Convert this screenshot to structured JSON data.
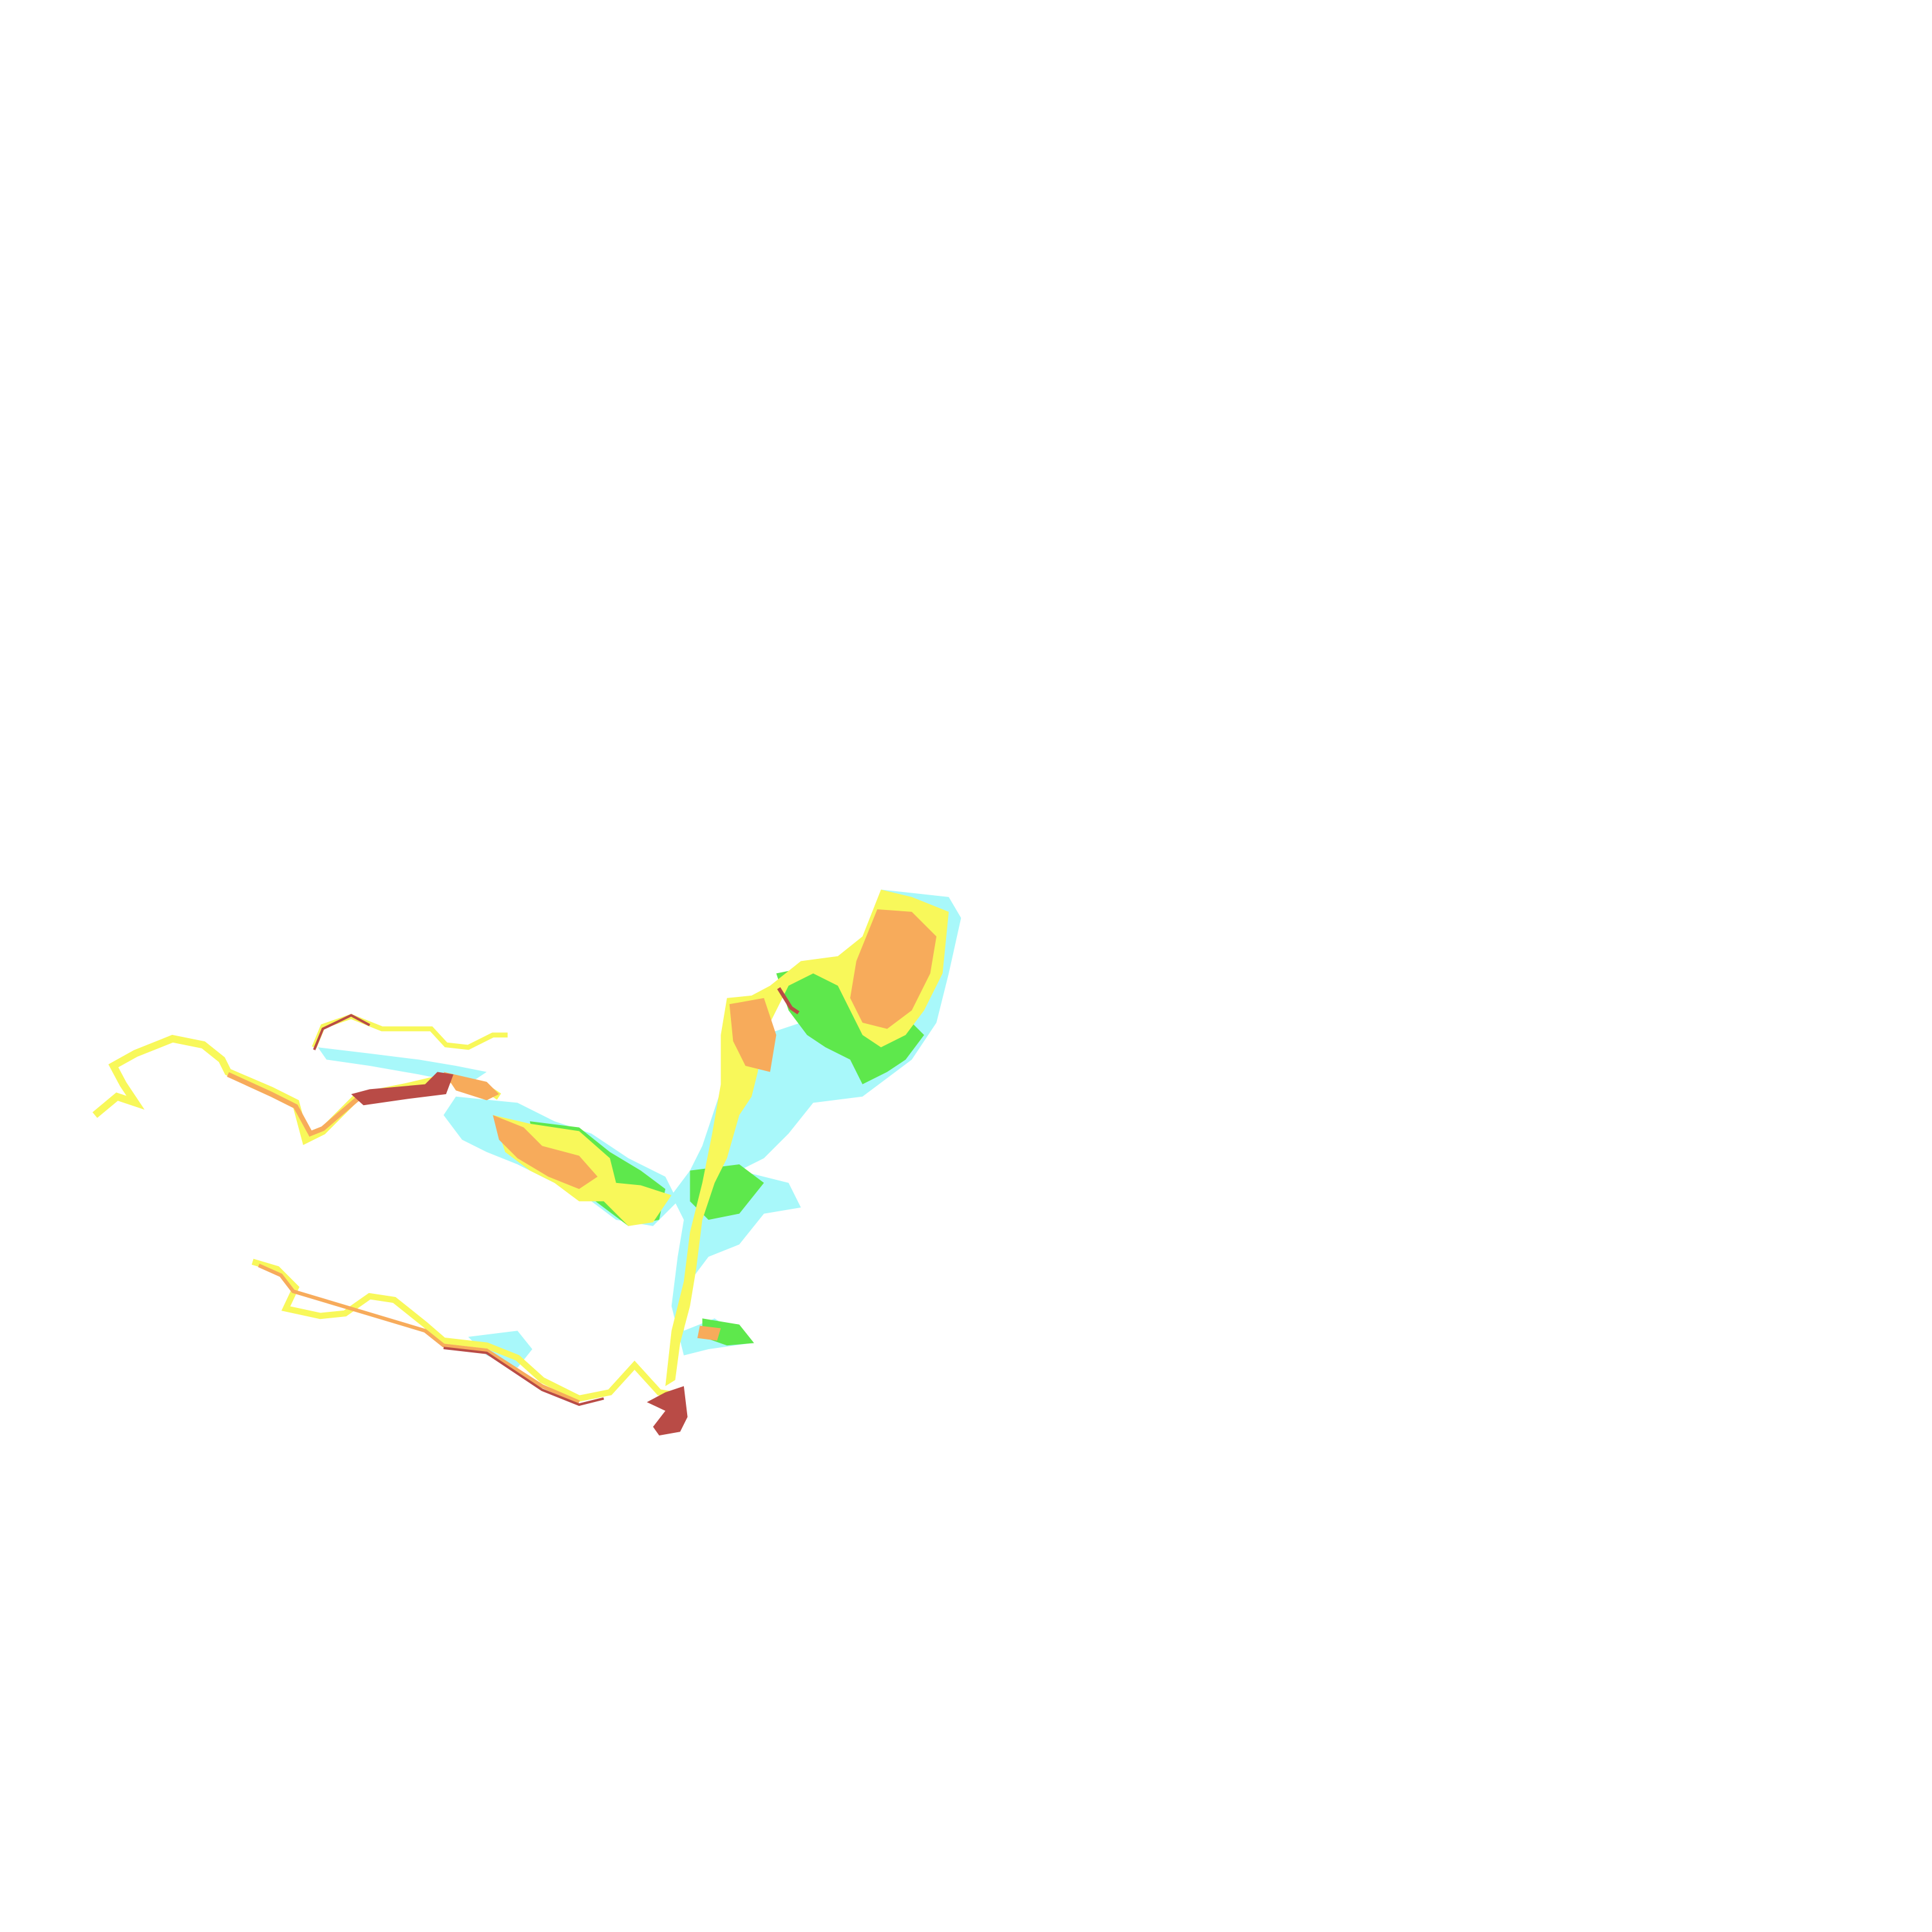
{
  "map": {
    "background": "#ffffff",
    "classes": [
      {
        "id": "class-1",
        "color": "#a8f8fa"
      },
      {
        "id": "class-2",
        "color": "#5ee84c"
      },
      {
        "id": "class-3",
        "color": "#f8f85a"
      },
      {
        "id": "class-4",
        "color": "#f7ab5b"
      },
      {
        "id": "class-5",
        "color": "#b94b46"
      }
    ]
  }
}
